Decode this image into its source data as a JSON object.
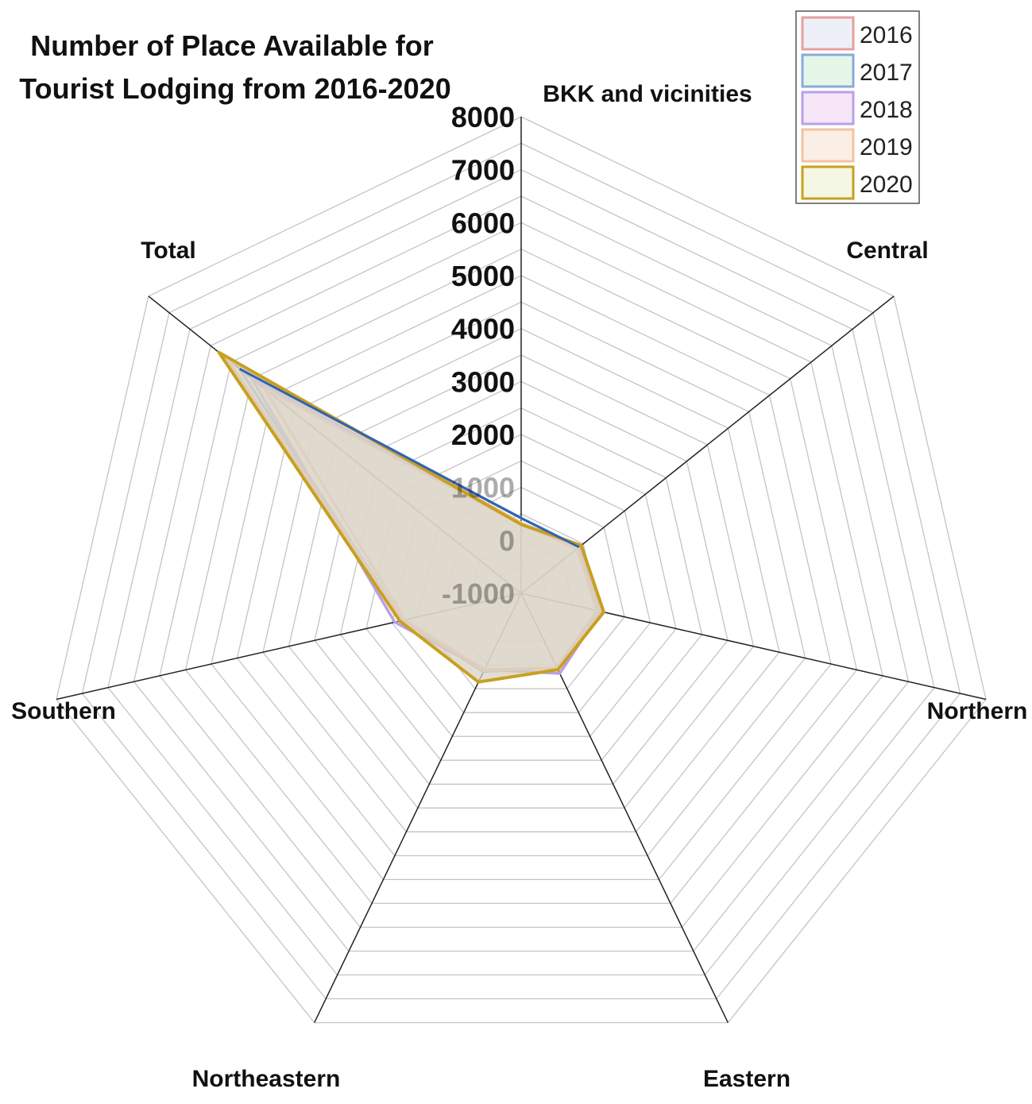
{
  "chart_data": {
    "type": "radar",
    "title_lines": [
      "Number of Place Available for",
      "Tourist Lodging from 2016-2020"
    ],
    "categories": [
      "BKK and vicinities",
      "Central",
      "Northern",
      "Eastern",
      "Northeastern",
      "Southern",
      "Total"
    ],
    "r_ticks": [
      "8000",
      "7000",
      "6000",
      "5000",
      "4000",
      "3000",
      "2000",
      "1000",
      "0",
      "-1000"
    ],
    "rlim": [
      -1000,
      8000
    ],
    "grid": true,
    "legend_position": "top-right",
    "series": [
      {
        "name": "2016",
        "values": [
          300,
          350,
          460,
          560,
          600,
          1250,
          5200
        ]
      },
      {
        "name": "2017",
        "values": [
          420,
          400,
          500,
          560,
          640,
          1300,
          5800
        ]
      },
      {
        "name": "2018",
        "values": [
          320,
          420,
          540,
          680,
          600,
          1450,
          5500
        ]
      },
      {
        "name": "2019",
        "values": [
          330,
          360,
          520,
          560,
          620,
          1300,
          6100
        ]
      },
      {
        "name": "2020",
        "values": [
          300,
          450,
          600,
          600,
          860,
          1350,
          6300
        ]
      }
    ],
    "series_colors": {
      "2016": {
        "stroke": "#e8a0a0",
        "fill": "#eef0f8"
      },
      "2017": {
        "stroke": "#88aadd",
        "fill": "#e6f6e6"
      },
      "2018": {
        "stroke": "#b8a0e8",
        "fill": "#f6e6f8"
      },
      "2019": {
        "stroke": "#f0c4a0",
        "fill": "#fbeee4"
      },
      "2020": {
        "stroke": "#c8a020",
        "fill": "#f3f7e3"
      }
    },
    "area_fill": "#d8d1c2",
    "emphasis_line_color": "#2f63b3"
  }
}
